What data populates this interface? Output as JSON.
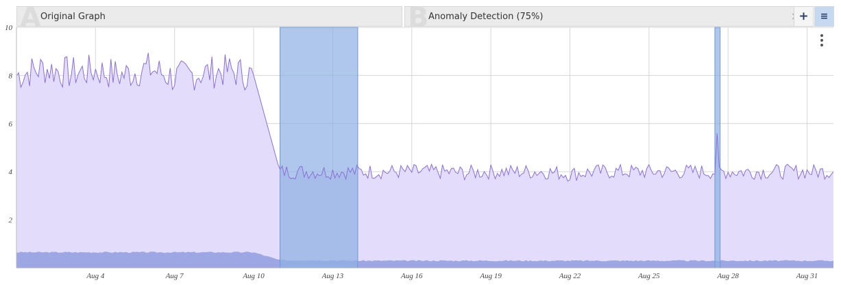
{
  "tabs": [
    {
      "letter": "A",
      "label": "Original Graph"
    },
    {
      "letter": "B",
      "label": "Anomaly Detection (75%)",
      "close": "×"
    }
  ],
  "toolbar": {
    "add": "+",
    "menu": "≡"
  },
  "colors": {
    "area": "#e3dcfa",
    "line": "#8b6fd9",
    "lower": "#9ca7e3",
    "anomaly": "#8fb2e2",
    "grid": "#d6d6d6"
  },
  "chart_data": {
    "type": "area",
    "title": "",
    "xlabel": "",
    "ylabel": "",
    "xlim": [
      "Aug 1",
      "Sep 1"
    ],
    "ylim": [
      0,
      10
    ],
    "y_ticks": [
      2,
      4,
      6,
      8,
      10
    ],
    "x_ticks": [
      "Aug 4",
      "Aug 7",
      "Aug 10",
      "Aug 13",
      "Aug 16",
      "Aug 19",
      "Aug 22",
      "Aug 25",
      "Aug 28",
      "Aug 31"
    ],
    "grid": true,
    "series": [
      {
        "x": [
          "Aug 1",
          "Aug 2",
          "Aug 3",
          "Aug 4",
          "Aug 5",
          "Aug 6",
          "Aug 7",
          "Aug 8",
          "Aug 9",
          "Aug 10",
          "Aug 11",
          "Aug 12",
          "Aug 13",
          "Aug 14",
          "Aug 15",
          "Aug 16",
          "Aug 17",
          "Aug 18",
          "Aug 19",
          "Aug 20",
          "Aug 21",
          "Aug 22",
          "Aug 23",
          "Aug 24",
          "Aug 25",
          "Aug 26",
          "Aug 27",
          "Aug 28",
          "Aug 29",
          "Aug 30",
          "Aug 31",
          "Sep 1"
        ],
        "y": [
          8.0,
          8.3,
          8.1,
          8.2,
          8.0,
          8.3,
          7.9,
          8.1,
          8.2,
          8.0,
          4.0,
          4.0,
          4.0,
          4.0,
          4.0,
          4.0,
          4.0,
          3.95,
          4.0,
          4.0,
          4.0,
          3.9,
          4.0,
          4.0,
          4.0,
          4.0,
          4.0,
          4.0,
          4.0,
          4.0,
          4.0,
          4.0
        ]
      },
      {
        "x": [
          "Aug 1",
          "Aug 2",
          "Aug 3",
          "Aug 4",
          "Aug 5",
          "Aug 6",
          "Aug 7",
          "Aug 8",
          "Aug 9",
          "Aug 10",
          "Aug 11",
          "Aug 12",
          "Aug 13",
          "Aug 14",
          "Aug 15",
          "Aug 16",
          "Aug 17",
          "Aug 18",
          "Aug 19",
          "Aug 20",
          "Aug 21",
          "Aug 22",
          "Aug 23",
          "Aug 24",
          "Aug 25",
          "Aug 26",
          "Aug 27",
          "Aug 28",
          "Aug 29",
          "Aug 30",
          "Aug 31",
          "Sep 1"
        ],
        "y": [
          0.65,
          0.65,
          0.65,
          0.65,
          0.65,
          0.65,
          0.65,
          0.65,
          0.65,
          0.65,
          0.32,
          0.32,
          0.32,
          0.3,
          0.3,
          0.3,
          0.3,
          0.3,
          0.3,
          0.3,
          0.3,
          0.3,
          0.3,
          0.3,
          0.3,
          0.3,
          0.3,
          0.3,
          0.3,
          0.3,
          0.3,
          0.3
        ]
      }
    ],
    "anomaly_ranges": [
      {
        "start": "Aug 11",
        "end": "Aug 13.95"
      },
      {
        "start": "Aug 27.5",
        "end": "Aug 27.7"
      }
    ],
    "spike": {
      "x": "Aug 27.55",
      "y": 5.6
    }
  }
}
